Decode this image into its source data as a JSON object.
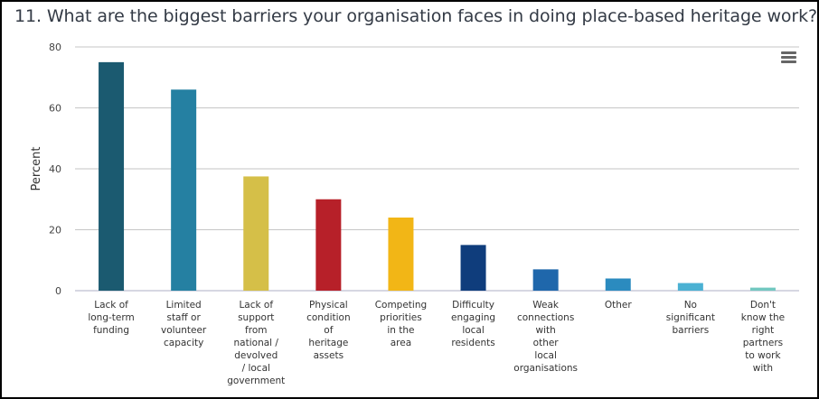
{
  "menu_icon": "hamburger-menu-icon",
  "chart_data": {
    "type": "bar",
    "title": "11. What are the biggest barriers your organisation faces in doing place-based heritage work?",
    "xlabel": "",
    "ylabel": "Percent",
    "ylim": [
      0,
      80
    ],
    "yticks": [
      "0",
      "20",
      "40",
      "60",
      "80"
    ],
    "grid": true,
    "legend": "none",
    "categories": [
      [
        "Lack of",
        "long-term",
        "funding"
      ],
      [
        "Limited",
        "staff or",
        "volunteer",
        "capacity"
      ],
      [
        "Lack of",
        "support",
        "from",
        "national /",
        "devolved",
        "/ local",
        "government"
      ],
      [
        "Physical",
        "condition",
        "of",
        "heritage",
        "assets"
      ],
      [
        "Competing",
        "priorities",
        "in the",
        "area"
      ],
      [
        "Difficulty",
        "engaging",
        "local",
        "residents"
      ],
      [
        "Weak",
        "connections",
        "with",
        "other",
        "local",
        "organisations"
      ],
      [
        "Other"
      ],
      [
        "No",
        "significant",
        "barriers"
      ],
      [
        "Don't",
        "know the",
        "right",
        "partners",
        "to work",
        "with"
      ]
    ],
    "values": [
      75,
      66,
      37.5,
      30,
      24,
      15,
      7,
      4,
      2.5,
      1
    ],
    "colors": [
      "#1b5a70",
      "#2580a2",
      "#d5bf48",
      "#b72029",
      "#f2b616",
      "#0f3d7c",
      "#1f67ab",
      "#2b8bbf",
      "#4bb1d3",
      "#72c8c0"
    ]
  }
}
